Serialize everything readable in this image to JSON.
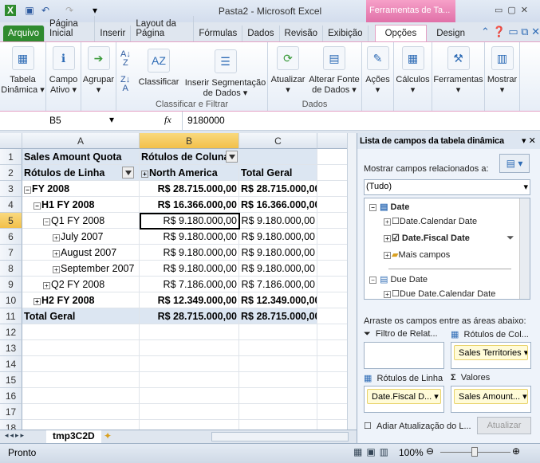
{
  "window": {
    "title": "Pasta2  -  Microsoft Excel",
    "context_tab_group": "Ferramentas de Ta..."
  },
  "tabs": [
    "Arquivo",
    "Página Inicial",
    "Inserir",
    "Layout da Página",
    "Fórmulas",
    "Dados",
    "Revisão",
    "Exibição",
    "Opções",
    "Design"
  ],
  "ribbon": {
    "buttons": [
      "Tabela Dinâmica",
      "Campo Ativo",
      "Agrupar",
      "Classificar",
      "Inserir Segmentação de Dados",
      "Atualizar",
      "Alterar Fonte de Dados",
      "Ações",
      "Cálculos",
      "Ferramentas",
      "Mostrar"
    ],
    "groups": [
      "Classificar e Filtrar",
      "Dados"
    ]
  },
  "formula_bar": {
    "name_box": "B5",
    "fx": "fx",
    "value": "9180000"
  },
  "sheet": {
    "columns": [
      "A",
      "B",
      "C"
    ],
    "rows": [
      {
        "n": "1",
        "a": "Sales Amount Quota",
        "b": "Rótulos de Coluna",
        "c": ""
      },
      {
        "n": "2",
        "a": "Rótulos de Linha",
        "b": "North America",
        "c": "Total Geral"
      },
      {
        "n": "3",
        "a": "FY 2008",
        "b": "R$ 28.715.000,00",
        "c": "R$ 28.715.000,00"
      },
      {
        "n": "4",
        "a": "H1 FY 2008",
        "b": "R$ 16.366.000,00",
        "c": "R$ 16.366.000,00"
      },
      {
        "n": "5",
        "a": "Q1 FY 2008",
        "b": "R$ 9.180.000,00",
        "c": "R$ 9.180.000,00"
      },
      {
        "n": "6",
        "a": "July 2007",
        "b": "R$ 9.180.000,00",
        "c": "R$ 9.180.000,00"
      },
      {
        "n": "7",
        "a": "August 2007",
        "b": "R$ 9.180.000,00",
        "c": "R$ 9.180.000,00"
      },
      {
        "n": "8",
        "a": "September 2007",
        "b": "R$ 9.180.000,00",
        "c": "R$ 9.180.000,00"
      },
      {
        "n": "9",
        "a": "Q2 FY 2008",
        "b": "R$ 7.186.000,00",
        "c": "R$ 7.186.000,00"
      },
      {
        "n": "10",
        "a": "H2 FY 2008",
        "b": "R$ 12.349.000,00",
        "c": "R$ 12.349.000,00"
      },
      {
        "n": "11",
        "a": "Total Geral",
        "b": "R$ 28.715.000,00",
        "c": "R$ 28.715.000,00"
      },
      {
        "n": "12"
      },
      {
        "n": "13"
      },
      {
        "n": "14"
      },
      {
        "n": "15"
      },
      {
        "n": "16"
      },
      {
        "n": "17"
      },
      {
        "n": "18"
      }
    ],
    "sheet_tab": "tmp3C2D"
  },
  "pane": {
    "title": "Lista de campos da tabela dinâmica",
    "show_related": "Mostrar campos relacionados a:",
    "dropdown": "(Tudo)",
    "fields": [
      {
        "label": "Date",
        "kind": "table",
        "bold": true
      },
      {
        "label": "Date.Calendar Date",
        "kind": "field",
        "checked": false
      },
      {
        "label": "Date.Fiscal Date",
        "kind": "field",
        "checked": true
      },
      {
        "label": "Mais campos",
        "kind": "folder"
      },
      {
        "label": "Due Date",
        "kind": "table"
      },
      {
        "label": "Due Date.Calendar Date",
        "kind": "field",
        "checked": false
      }
    ],
    "drag_hint": "Arraste os campos entre as áreas abaixo:",
    "areas": {
      "filter": "Filtro de Relat...",
      "columns": "Rótulos de Col...",
      "rows": "Rótulos de Linha",
      "values": "Valores"
    },
    "chips": {
      "columns": "Sales Territories",
      "rows": "Date.Fiscal D...",
      "values": "Sales Amount..."
    },
    "defer": "Adiar Atualização do L...",
    "update": "Atualizar"
  },
  "status": {
    "ready": "Pronto",
    "zoom": "100%"
  }
}
